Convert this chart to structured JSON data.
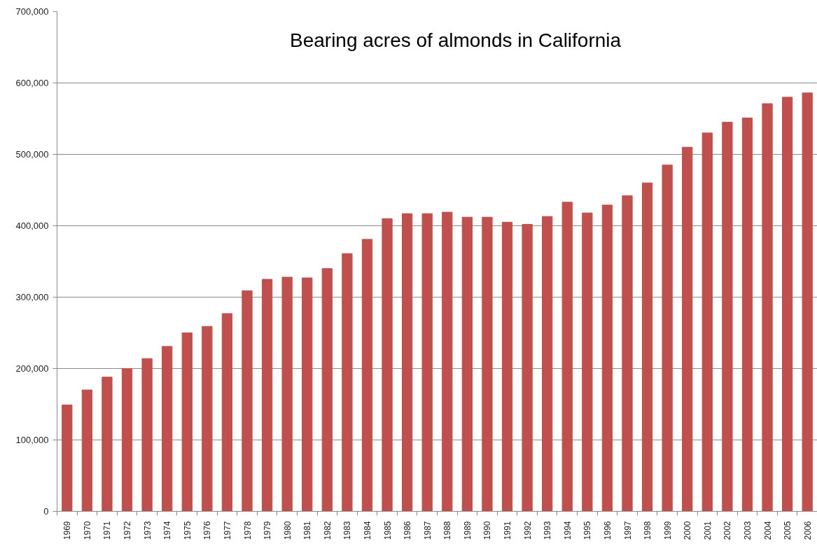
{
  "chart_data": {
    "type": "bar",
    "title": "Bearing acres of almonds in California",
    "categories": [
      "1969",
      "1970",
      "1971",
      "1972",
      "1973",
      "1974",
      "1975",
      "1976",
      "1977",
      "1978",
      "1979",
      "1980",
      "1981",
      "1982",
      "1983",
      "1984",
      "1985",
      "1986",
      "1987",
      "1988",
      "1989",
      "1990",
      "1991",
      "1992",
      "1993",
      "1994",
      "1995",
      "1996",
      "1997",
      "1998",
      "1999",
      "2000",
      "2001",
      "2002",
      "2003",
      "2004",
      "2005",
      "2006"
    ],
    "values": [
      149000,
      170000,
      188000,
      200000,
      214000,
      231000,
      250000,
      259000,
      277000,
      309000,
      325000,
      328000,
      327000,
      340000,
      361000,
      381000,
      410000,
      417000,
      417000,
      419000,
      412000,
      412000,
      405000,
      402000,
      413000,
      433000,
      418000,
      429000,
      442000,
      460000,
      485000,
      510000,
      530000,
      545000,
      551000,
      571000,
      580000,
      586000
    ],
    "color": "#c0504d",
    "ylim": [
      0,
      700000
    ],
    "yticks": [
      0,
      {
        "value": 100000,
        "label": "100,000"
      },
      {
        "value": 200000,
        "label": "200,000"
      },
      {
        "value": 300000,
        "label": "300,000"
      },
      {
        "value": 400000,
        "label": "400,000"
      },
      {
        "value": 500000,
        "label": "500,000"
      },
      {
        "value": 600000,
        "label": "600,000"
      },
      {
        "value": 700000,
        "label": "700,000"
      }
    ],
    "grid": "y"
  }
}
